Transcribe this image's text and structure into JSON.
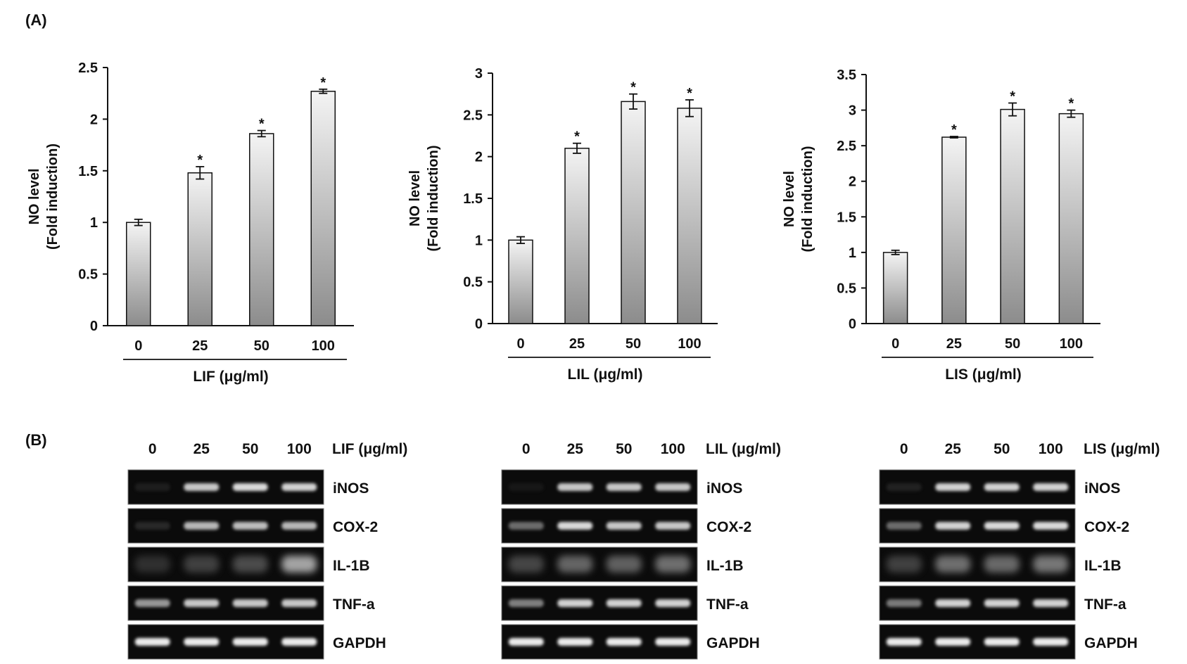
{
  "panel_labels": {
    "a": "(A)",
    "b": "(B)"
  },
  "chart_data": [
    {
      "type": "bar",
      "title": "",
      "ylabel_line1": "NO level",
      "ylabel_line2": "(Fold induction)",
      "xlabel": "LIF  (μg/ml)",
      "categories": [
        "0",
        "25",
        "50",
        "100"
      ],
      "values": [
        1.0,
        1.48,
        1.86,
        2.27
      ],
      "errors": [
        0.03,
        0.06,
        0.03,
        0.02
      ],
      "significance": [
        "",
        "*",
        "*",
        "*"
      ],
      "ylim": [
        0,
        2.5
      ],
      "yticks": [
        "0",
        "0.5",
        "1",
        "1.5",
        "2",
        "2.5"
      ],
      "grid": false
    },
    {
      "type": "bar",
      "title": "",
      "ylabel_line1": "NO level",
      "ylabel_line2": "(Fold induction)",
      "xlabel": "LIL  (μg/ml)",
      "categories": [
        "0",
        "25",
        "50",
        "100"
      ],
      "values": [
        1.0,
        2.1,
        2.66,
        2.58
      ],
      "errors": [
        0.04,
        0.06,
        0.09,
        0.1
      ],
      "significance": [
        "",
        "*",
        "*",
        "*"
      ],
      "ylim": [
        0,
        3
      ],
      "yticks": [
        "0",
        "0.5",
        "1",
        "1.5",
        "2",
        "2.5",
        "3"
      ],
      "grid": false
    },
    {
      "type": "bar",
      "title": "",
      "ylabel_line1": "NO level",
      "ylabel_line2": "(Fold induction)",
      "xlabel": "LIS  (μg/ml)",
      "categories": [
        "0",
        "25",
        "50",
        "100"
      ],
      "values": [
        1.0,
        2.62,
        3.01,
        2.95
      ],
      "errors": [
        0.03,
        0.01,
        0.09,
        0.05
      ],
      "significance": [
        "",
        "*",
        "*",
        "*"
      ],
      "ylim": [
        0,
        3.5
      ],
      "yticks": [
        "0",
        "0.5",
        "1",
        "1.5",
        "2",
        "2.5",
        "3",
        "3.5"
      ],
      "grid": false
    }
  ],
  "gels": [
    {
      "treatment": "LIF  (μg/ml)",
      "doses": [
        "0",
        "25",
        "50",
        "100"
      ],
      "genes": [
        {
          "name": "iNOS",
          "intensity": [
            0.12,
            0.85,
            0.9,
            0.88
          ]
        },
        {
          "name": "COX-2",
          "intensity": [
            0.2,
            0.8,
            0.82,
            0.8
          ]
        },
        {
          "name": "IL-1B",
          "intensity": [
            0.22,
            0.32,
            0.38,
            0.75
          ]
        },
        {
          "name": "TNF-a",
          "intensity": [
            0.7,
            0.85,
            0.85,
            0.85
          ]
        },
        {
          "name": "GAPDH",
          "intensity": [
            0.95,
            0.95,
            0.95,
            0.95
          ]
        }
      ]
    },
    {
      "treatment": "LIL  (μg/ml)",
      "doses": [
        "0",
        "25",
        "50",
        "100"
      ],
      "genes": [
        {
          "name": "iNOS",
          "intensity": [
            0.06,
            0.85,
            0.85,
            0.85
          ]
        },
        {
          "name": "COX-2",
          "intensity": [
            0.55,
            0.9,
            0.85,
            0.85
          ]
        },
        {
          "name": "IL-1B",
          "intensity": [
            0.35,
            0.5,
            0.48,
            0.55
          ]
        },
        {
          "name": "TNF-a",
          "intensity": [
            0.62,
            0.88,
            0.88,
            0.88
          ]
        },
        {
          "name": "GAPDH",
          "intensity": [
            0.95,
            0.95,
            0.95,
            0.95
          ]
        }
      ]
    },
    {
      "treatment": "LIS  (μg/ml)",
      "doses": [
        "0",
        "25",
        "50",
        "100"
      ],
      "genes": [
        {
          "name": "iNOS",
          "intensity": [
            0.15,
            0.88,
            0.88,
            0.88
          ]
        },
        {
          "name": "COX-2",
          "intensity": [
            0.55,
            0.88,
            0.9,
            0.9
          ]
        },
        {
          "name": "IL-1B",
          "intensity": [
            0.32,
            0.55,
            0.52,
            0.58
          ]
        },
        {
          "name": "TNF-a",
          "intensity": [
            0.6,
            0.88,
            0.88,
            0.88
          ]
        },
        {
          "name": "GAPDH",
          "intensity": [
            0.95,
            0.95,
            0.95,
            0.95
          ]
        }
      ]
    }
  ]
}
